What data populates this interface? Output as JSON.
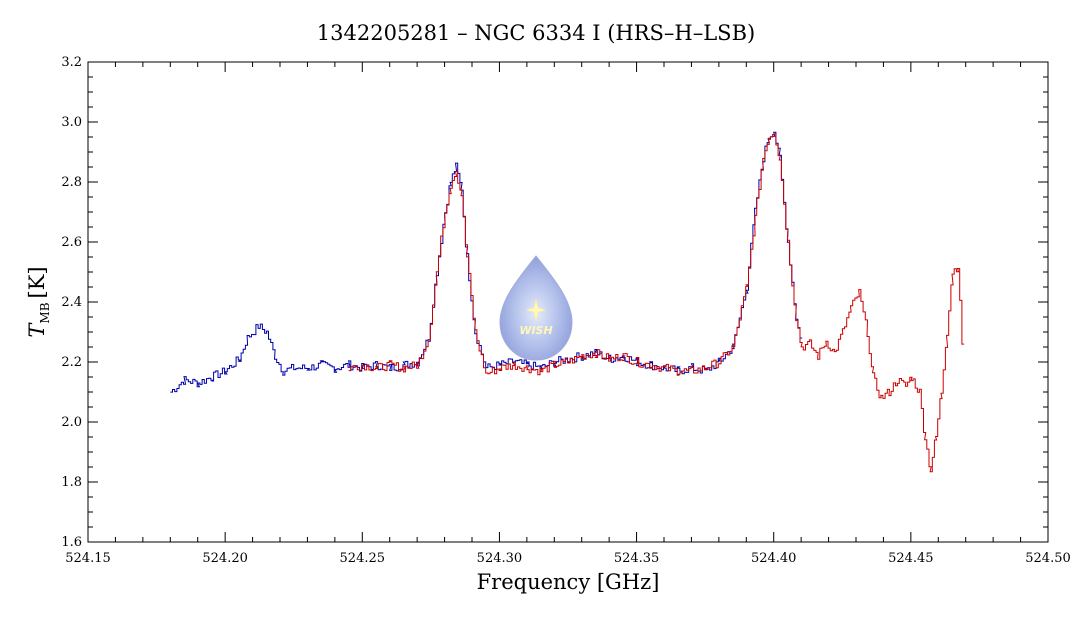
{
  "chart_data": {
    "type": "line",
    "title": "1342205281 – NGC 6334 I (HRS–H–LSB)",
    "xlabel": "Frequency [GHz]",
    "ylabel_main": "T",
    "ylabel_sub": "MB",
    "ylabel_unit": "[K]",
    "xlim": [
      524.15,
      524.5
    ],
    "ylim": [
      1.6,
      3.2
    ],
    "x_ticks": [
      "524.15",
      "524.20",
      "524.25",
      "524.30",
      "524.35",
      "524.40",
      "524.45",
      "524.50"
    ],
    "y_ticks": [
      "1.6",
      "1.8",
      "2.0",
      "2.2",
      "2.4",
      "2.6",
      "2.8",
      "3.0",
      "3.2"
    ],
    "grid": false,
    "logo_text": "WISH",
    "series": [
      {
        "color": "#0000aa",
        "x": [
          524.18,
          524.185,
          524.19,
          524.195,
          524.2,
          524.205,
          524.208,
          524.212,
          524.215,
          524.218,
          524.221,
          524.225,
          524.23,
          524.235,
          524.24,
          524.245,
          524.25,
          524.255,
          524.26,
          524.265,
          524.27,
          524.274,
          524.277,
          524.28,
          524.282,
          524.284,
          524.286,
          524.288,
          524.291,
          524.295,
          524.3,
          524.305,
          524.31,
          524.315,
          524.32,
          524.325,
          524.33,
          524.335,
          524.34,
          524.345,
          524.35,
          524.355,
          524.36,
          524.365,
          524.37,
          524.375,
          524.38,
          524.385,
          524.39,
          524.393,
          524.396,
          524.398,
          524.4,
          524.402,
          524.405,
          524.408,
          524.41
        ],
        "y": [
          2.1,
          2.14,
          2.13,
          2.15,
          2.17,
          2.21,
          2.28,
          2.32,
          2.3,
          2.22,
          2.17,
          2.18,
          2.18,
          2.19,
          2.18,
          2.19,
          2.18,
          2.19,
          2.18,
          2.19,
          2.2,
          2.28,
          2.5,
          2.7,
          2.8,
          2.85,
          2.78,
          2.55,
          2.3,
          2.18,
          2.19,
          2.2,
          2.19,
          2.18,
          2.2,
          2.21,
          2.22,
          2.23,
          2.21,
          2.22,
          2.2,
          2.19,
          2.18,
          2.17,
          2.18,
          2.17,
          2.2,
          2.25,
          2.45,
          2.7,
          2.88,
          2.95,
          2.97,
          2.88,
          2.6,
          2.35,
          2.26
        ]
      },
      {
        "color": "#cc0000",
        "x": [
          524.245,
          524.25,
          524.255,
          524.26,
          524.265,
          524.27,
          524.274,
          524.277,
          524.28,
          524.282,
          524.284,
          524.286,
          524.288,
          524.291,
          524.295,
          524.3,
          524.305,
          524.31,
          524.315,
          524.32,
          524.325,
          524.33,
          524.335,
          524.34,
          524.345,
          524.35,
          524.355,
          524.36,
          524.365,
          524.37,
          524.375,
          524.38,
          524.385,
          524.39,
          524.393,
          524.396,
          524.398,
          524.4,
          524.402,
          524.405,
          524.408,
          524.41,
          524.413,
          524.416,
          524.419,
          524.422,
          524.425,
          524.428,
          524.431,
          524.434,
          524.436,
          524.439,
          524.442,
          524.445,
          524.448,
          524.45,
          524.453,
          524.455,
          524.457,
          524.459,
          524.461,
          524.463,
          524.465,
          524.467,
          524.469
        ],
        "y": [
          2.18,
          2.19,
          2.18,
          2.19,
          2.18,
          2.19,
          2.28,
          2.5,
          2.7,
          2.79,
          2.84,
          2.76,
          2.55,
          2.3,
          2.16,
          2.18,
          2.19,
          2.18,
          2.17,
          2.19,
          2.2,
          2.22,
          2.23,
          2.21,
          2.22,
          2.2,
          2.19,
          2.18,
          2.17,
          2.17,
          2.18,
          2.2,
          2.25,
          2.45,
          2.68,
          2.88,
          2.95,
          2.97,
          2.88,
          2.6,
          2.35,
          2.25,
          2.26,
          2.22,
          2.27,
          2.23,
          2.3,
          2.38,
          2.43,
          2.3,
          2.15,
          2.08,
          2.1,
          2.14,
          2.12,
          2.15,
          2.1,
          1.95,
          1.84,
          1.95,
          2.1,
          2.3,
          2.5,
          2.52,
          2.2
        ]
      }
    ]
  }
}
